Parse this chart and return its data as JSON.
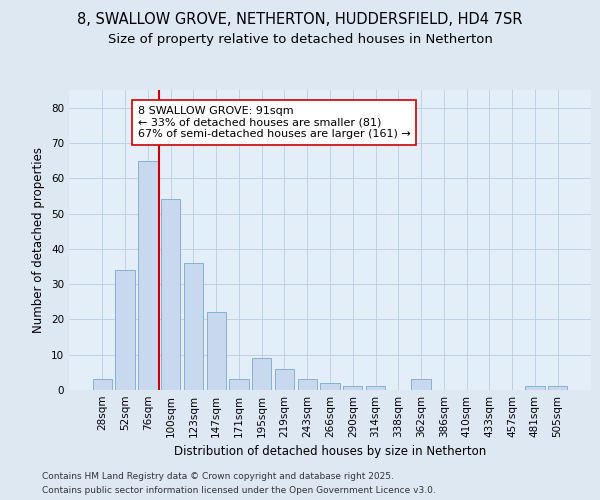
{
  "title_line1": "8, SWALLOW GROVE, NETHERTON, HUDDERSFIELD, HD4 7SR",
  "title_line2": "Size of property relative to detached houses in Netherton",
  "xlabel": "Distribution of detached houses by size in Netherton",
  "ylabel": "Number of detached properties",
  "categories": [
    "28sqm",
    "52sqm",
    "76sqm",
    "100sqm",
    "123sqm",
    "147sqm",
    "171sqm",
    "195sqm",
    "219sqm",
    "243sqm",
    "266sqm",
    "290sqm",
    "314sqm",
    "338sqm",
    "362sqm",
    "386sqm",
    "410sqm",
    "433sqm",
    "457sqm",
    "481sqm",
    "505sqm"
  ],
  "values": [
    3,
    34,
    65,
    54,
    36,
    22,
    3,
    9,
    6,
    3,
    2,
    1,
    1,
    0,
    3,
    0,
    0,
    0,
    0,
    1,
    1
  ],
  "bar_color": "#c8d8ee",
  "bar_edge_color": "#7aaaca",
  "property_label": "8 SWALLOW GROVE: 91sqm",
  "annotation_line1": "← 33% of detached houses are smaller (81)",
  "annotation_line2": "67% of semi-detached houses are larger (161) →",
  "vline_color": "#cc0000",
  "vline_x_index": 2.5,
  "annotation_box_facecolor": "#ffffff",
  "annotation_box_edgecolor": "#cc0000",
  "ylim": [
    0,
    85
  ],
  "yticks": [
    0,
    10,
    20,
    30,
    40,
    50,
    60,
    70,
    80
  ],
  "grid_color": "#b8cce0",
  "bg_color": "#dde8f2",
  "plot_bg_color": "#e4eef8",
  "footer_line1": "Contains HM Land Registry data © Crown copyright and database right 2025.",
  "footer_line2": "Contains public sector information licensed under the Open Government Licence v3.0.",
  "title_fontsize": 10.5,
  "subtitle_fontsize": 9.5,
  "axis_label_fontsize": 8.5,
  "tick_fontsize": 7.5,
  "annotation_fontsize": 8,
  "footer_fontsize": 6.5
}
